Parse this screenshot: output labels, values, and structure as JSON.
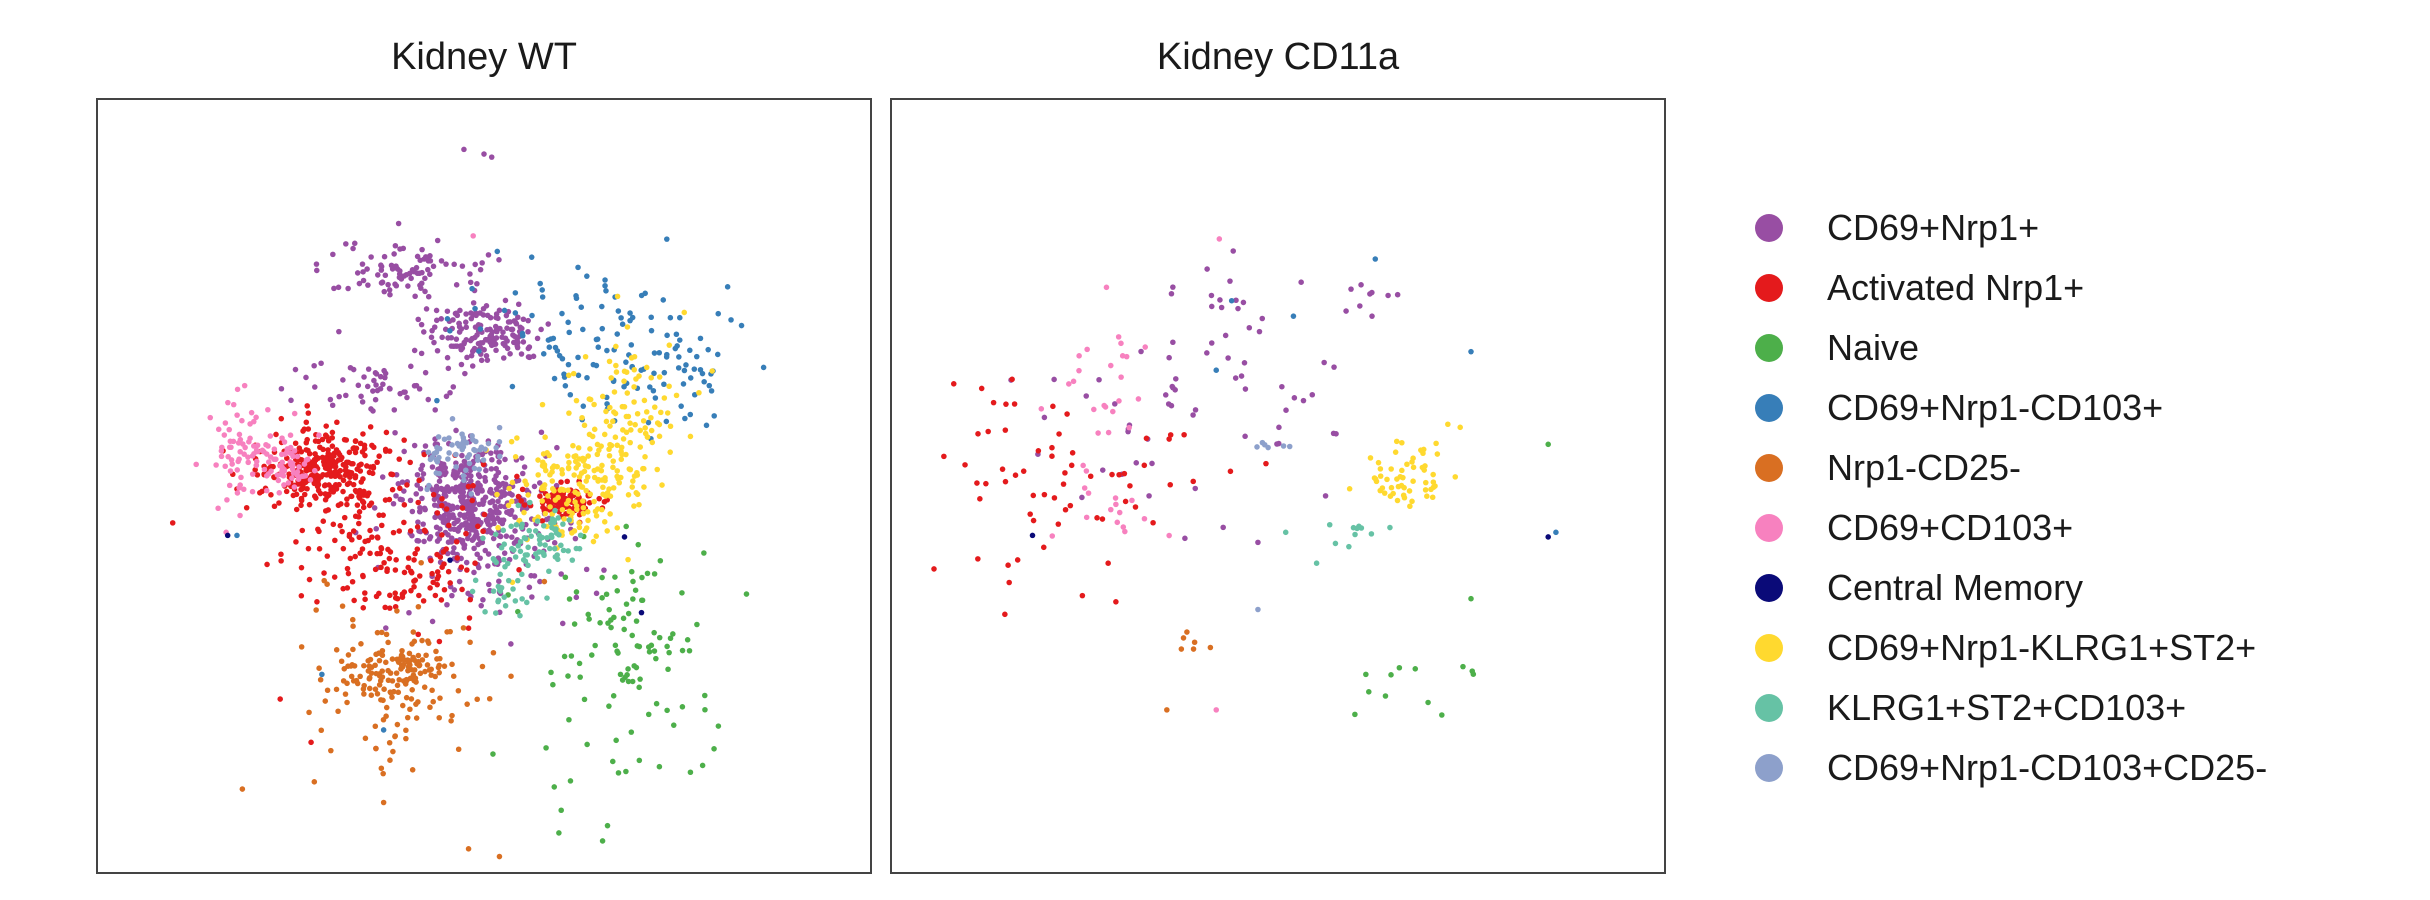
{
  "chart_data": [
    {
      "type": "scatter",
      "title": "Kidney WT",
      "series": [
        {
          "name": "CD69+Nrp1+",
          "color": "#984ea3",
          "clusters": [
            [
              250,
              151,
              56,
              30,
              160
            ],
            [
              240,
              260,
              60,
              50,
              420
            ],
            [
              200,
              110,
              80,
              30,
              90
            ],
            [
              180,
              185,
              60,
              25,
              50
            ],
            [
              245,
              295,
              100,
              70,
              80
            ]
          ],
          "points": [
            [
              237,
              32
            ],
            [
              255,
              37
            ],
            [
              250,
              35
            ],
            [
              156,
              150
            ]
          ]
        },
        {
          "name": "Activated Nrp1+",
          "color": "#e41a1c",
          "clusters": [
            [
              145,
              238,
              55,
              32,
              260
            ],
            [
              180,
              270,
              100,
              70,
              150
            ],
            [
              300,
              260,
              30,
              15,
              70
            ],
            [
              200,
              310,
              70,
              40,
              60
            ],
            [
              310,
              260,
              25,
              15,
              30
            ]
          ],
          "points": [
            [
              118,
              388
            ],
            [
              138,
              416
            ],
            [
              90,
              252
            ],
            [
              180,
              420
            ]
          ]
        },
        {
          "name": "Naive",
          "color": "#4daf4a",
          "clusters": [
            [
              340,
              370,
              80,
              120,
              90
            ],
            [
              350,
              350,
              50,
              50,
              20
            ]
          ],
          "points": [
            [
              420,
              320
            ],
            [
              300,
              460
            ],
            [
              330,
              470
            ]
          ]
        },
        {
          "name": "CD69+Nrp1-CD103+",
          "color": "#377eb8",
          "clusters": [
            [
              310,
              150,
              100,
              80,
              100
            ],
            [
              380,
              175,
              70,
              60,
              40
            ]
          ],
          "points": [
            [
              185,
              408
            ],
            [
              145,
              372
            ],
            [
              90,
              282
            ]
          ]
        },
        {
          "name": "Nrp1-CD25-",
          "color": "#d96f22",
          "clusters": [
            [
              190,
              370,
              50,
              30,
              110
            ],
            [
              200,
              380,
              90,
              90,
              90
            ]
          ],
          "points": [
            [
              180,
              420
            ],
            [
              240,
              485
            ],
            [
              260,
              490
            ],
            [
              185,
              455
            ]
          ]
        },
        {
          "name": "CD69+CD103+",
          "color": "#f781bf",
          "clusters": [
            [
              100,
              230,
              45,
              45,
              90
            ],
            [
              122,
              240,
              25,
              20,
              40
            ]
          ],
          "points": [
            [
              95,
              185
            ],
            [
              243,
              88
            ],
            [
              83,
              280
            ]
          ]
        },
        {
          "name": "Central Memory",
          "color": "#0a0a78",
          "clusters": [],
          "points": [
            [
              84,
              282
            ],
            [
              341,
              283
            ],
            [
              228,
              298
            ],
            [
              352,
              332
            ]
          ]
        },
        {
          "name": "CD69+Nrp1-KLRG1+ST2+",
          "color": "#ffd92f",
          "clusters": [
            [
              310,
              250,
              60,
              50,
              180
            ],
            [
              340,
              200,
              50,
              70,
              90
            ]
          ],
          "points": [
            [
              268,
              260
            ],
            [
              290,
              240
            ]
          ]
        },
        {
          "name": "KLRG1+ST2+CD103+",
          "color": "#66c2a5",
          "clusters": [
            [
              285,
              285,
              45,
              30,
              70
            ],
            [
              262,
              310,
              30,
              35,
              30
            ]
          ],
          "points": []
        },
        {
          "name": "CD69+Nrp1-CD103+CD25-",
          "color": "#8da0cb",
          "clusters": [
            [
              235,
              230,
              30,
              30,
              60
            ]
          ],
          "points": []
        }
      ]
    },
    {
      "type": "scatter",
      "title": "Kidney CD11a",
      "series": [
        {
          "name": "CD69+Nrp1+",
          "color": "#984ea3",
          "clusters": [
            [
              200,
              200,
              160,
              110,
              60
            ],
            [
              220,
              130,
              30,
              30,
              10
            ],
            [
              310,
              130,
              30,
              20,
              8
            ]
          ],
          "points": [
            [
              265,
              118
            ],
            [
              238,
              150
            ]
          ]
        },
        {
          "name": "Activated Nrp1+",
          "color": "#e41a1c",
          "clusters": [
            [
              170,
              240,
              80,
              50,
              18
            ],
            [
              90,
              250,
              90,
              110,
              45
            ]
          ],
          "points": [
            [
              140,
              300
            ],
            [
              145,
              325
            ]
          ]
        },
        {
          "name": "Naive",
          "color": "#4daf4a",
          "clusters": [
            [
              335,
              380,
              70,
              40,
              12
            ]
          ],
          "points": [
            [
              375,
              323
            ],
            [
              425,
              223
            ]
          ]
        },
        {
          "name": "CD69+Nrp1-CD103+",
          "color": "#377eb8",
          "clusters": [],
          "points": [
            [
              220,
              130
            ],
            [
              260,
              140
            ],
            [
              210,
              175
            ],
            [
              375,
              163
            ],
            [
              430,
              280
            ],
            [
              313,
              103
            ]
          ]
        },
        {
          "name": "Nrp1-CD25-",
          "color": "#d96f22",
          "clusters": [
            [
              195,
              355,
              15,
              15,
              6
            ]
          ],
          "points": [
            [
              178,
              395
            ]
          ]
        },
        {
          "name": "CD69+CD103+",
          "color": "#f781bf",
          "clusters": [
            [
              130,
              185,
              40,
              60,
              24
            ],
            [
              145,
              270,
              40,
              40,
              15
            ]
          ],
          "points": [
            [
              212,
              90
            ],
            [
              210,
              395
            ]
          ]
        },
        {
          "name": "Central Memory",
          "color": "#0a0a78",
          "clusters": [],
          "points": [
            [
              91,
              282
            ],
            [
              425,
              283
            ]
          ]
        },
        {
          "name": "CD69+Nrp1-KLRG1+ST2+",
          "color": "#ffd92f",
          "clusters": [
            [
              330,
              245,
              40,
              35,
              55
            ]
          ],
          "points": [
            [
              360,
              210
            ],
            [
              368,
              212
            ]
          ]
        },
        {
          "name": "KLRG1+ST2+CD103+",
          "color": "#66c2a5",
          "clusters": [
            [
              300,
              280,
              25,
              15,
              10
            ]
          ],
          "points": [
            [
              255,
              280
            ],
            [
              275,
              300
            ]
          ]
        },
        {
          "name": "CD69+Nrp1-CD103+CD25-",
          "color": "#8da0cb",
          "clusters": [
            [
              245,
              225,
              15,
              10,
              6
            ]
          ],
          "points": [
            [
              237,
              330
            ]
          ]
        }
      ]
    }
  ],
  "legend": {
    "placement": "right",
    "items": [
      {
        "label": "CD69+Nrp1+",
        "color": "#984ea3"
      },
      {
        "label": "Activated Nrp1+",
        "color": "#e41a1c"
      },
      {
        "label": "Naive",
        "color": "#4daf4a"
      },
      {
        "label": "CD69+Nrp1-CD103+",
        "color": "#377eb8"
      },
      {
        "label": "Nrp1-CD25-",
        "color": "#d96f22"
      },
      {
        "label": "CD69+CD103+",
        "color": "#f781bf"
      },
      {
        "label": "Central Memory",
        "color": "#0a0a78"
      },
      {
        "label": "CD69+Nrp1-KLRG1+ST2+",
        "color": "#ffd92f"
      },
      {
        "label": "KLRG1+ST2+CD103+",
        "color": "#66c2a5"
      },
      {
        "label": "CD69+Nrp1-CD103+CD25-",
        "color": "#8da0cb"
      }
    ]
  }
}
